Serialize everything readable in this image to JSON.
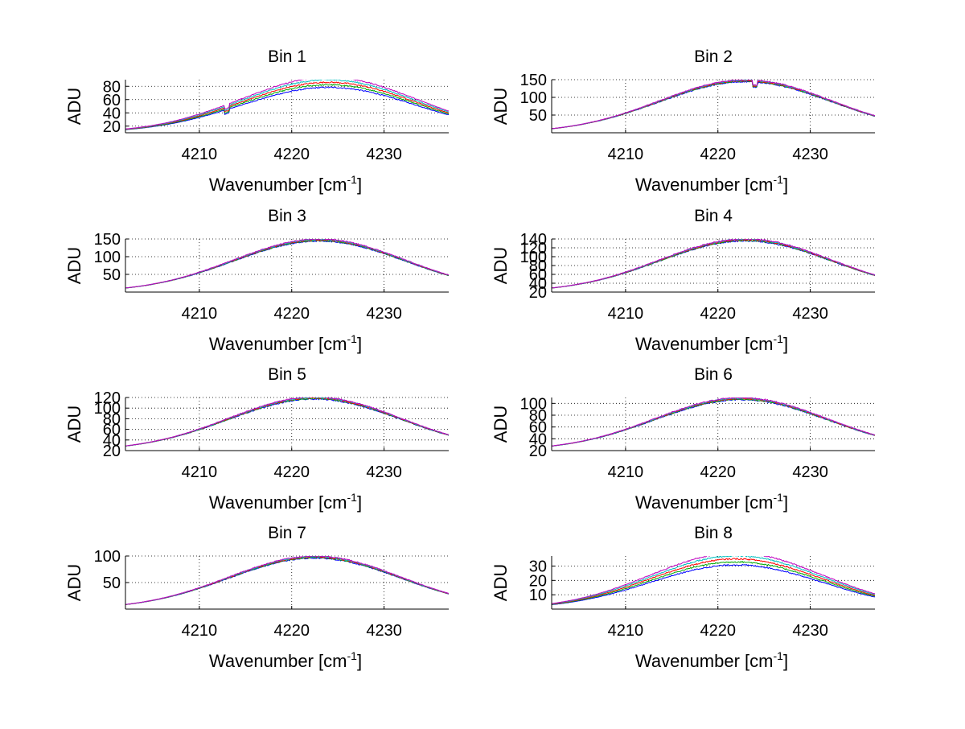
{
  "figure": {
    "background": "#ffffff",
    "grid": true,
    "line_colors": [
      "#0000ff",
      "#00aa00",
      "#ff0000",
      "#00bfbf",
      "#bf00bf",
      "#bfbf00"
    ]
  },
  "chart_data": [
    {
      "type": "line",
      "title": "Bin 1",
      "xlabel": "Wavenumber [cm",
      "xlabel_sup": "-1",
      "xlabel_close": "]",
      "ylabel": "ADU",
      "xlim": [
        4202,
        4237
      ],
      "xticks": [
        4210,
        4220,
        4230
      ],
      "ylim": [
        10,
        90
      ],
      "yticks": [
        20,
        40,
        60,
        80
      ],
      "peak": 86,
      "center": 4224,
      "width": 9.5,
      "base": 10,
      "noise": 1.2,
      "spread": 0.05,
      "dip": [
        4213,
        6
      ]
    },
    {
      "type": "line",
      "title": "Bin 2",
      "xlabel": "Wavenumber [cm",
      "xlabel_sup": "-1",
      "xlabel_close": "]",
      "ylabel": "ADU",
      "xlim": [
        4202,
        4237
      ],
      "xticks": [
        4210,
        4220,
        4230
      ],
      "ylim": [
        0,
        150
      ],
      "yticks": [
        50,
        100,
        150
      ],
      "peak": 147,
      "center": 4223,
      "width": 9.3,
      "base": 0,
      "noise": 2,
      "spread": 0.01,
      "dip": [
        4224,
        14
      ]
    },
    {
      "type": "line",
      "title": "Bin 3",
      "xlabel": "Wavenumber [cm",
      "xlabel_sup": "-1",
      "xlabel_close": "]",
      "ylabel": "ADU",
      "xlim": [
        4202,
        4237
      ],
      "xticks": [
        4210,
        4220,
        4230
      ],
      "ylim": [
        0,
        150
      ],
      "yticks": [
        50,
        100,
        150
      ],
      "peak": 147,
      "center": 4223,
      "width": 9.3,
      "base": 0,
      "noise": 2,
      "spread": 0.01
    },
    {
      "type": "line",
      "title": "Bin 4",
      "xlabel": "Wavenumber [cm",
      "xlabel_sup": "-1",
      "xlabel_close": "]",
      "ylabel": "ADU",
      "xlim": [
        4202,
        4237
      ],
      "xticks": [
        4210,
        4220,
        4230
      ],
      "ylim": [
        20,
        140
      ],
      "yticks": [
        20,
        40,
        60,
        80,
        100,
        120,
        140
      ],
      "ytick_labels": [
        "20",
        "40",
        "60",
        "80",
        "100",
        "120",
        "140"
      ],
      "peak": 138,
      "center": 4223,
      "width": 9.3,
      "base": 20,
      "noise": 1.8,
      "spread": 0.01
    },
    {
      "type": "line",
      "title": "Bin 5",
      "xlabel": "Wavenumber [cm",
      "xlabel_sup": "-1",
      "xlabel_close": "]",
      "ylabel": "ADU",
      "xlim": [
        4202,
        4237
      ],
      "xticks": [
        4210,
        4220,
        4230
      ],
      "ylim": [
        20,
        120
      ],
      "yticks": [
        20,
        40,
        60,
        80,
        100,
        120
      ],
      "ytick_labels": [
        "20",
        "40",
        "60",
        "80",
        "100",
        "120"
      ],
      "peak": 119,
      "center": 4222.5,
      "width": 9.3,
      "base": 20,
      "noise": 1.5,
      "spread": 0.01
    },
    {
      "type": "line",
      "title": "Bin 6",
      "xlabel": "Wavenumber [cm",
      "xlabel_sup": "-1",
      "xlabel_close": "]",
      "ylabel": "ADU",
      "xlim": [
        4202,
        4237
      ],
      "xticks": [
        4210,
        4220,
        4230
      ],
      "ylim": [
        20,
        110
      ],
      "yticks": [
        20,
        40,
        60,
        80,
        100
      ],
      "ytick_labels": [
        "20",
        "40",
        "60",
        "80",
        "100"
      ],
      "peak": 108,
      "center": 4222.5,
      "width": 9.3,
      "base": 20,
      "noise": 1.4,
      "spread": 0.01
    },
    {
      "type": "line",
      "title": "Bin 7",
      "xlabel": "Wavenumber [cm",
      "xlabel_sup": "-1",
      "xlabel_close": "]",
      "ylabel": "ADU",
      "xlim": [
        4202,
        4237
      ],
      "xticks": [
        4210,
        4220,
        4230
      ],
      "ylim": [
        0,
        100
      ],
      "yticks": [
        50,
        100
      ],
      "peak": 98,
      "center": 4222.5,
      "width": 9.3,
      "base": 0,
      "noise": 1.3,
      "spread": 0.01
    },
    {
      "type": "line",
      "title": "Bin 8",
      "xlabel": "Wavenumber [cm",
      "xlabel_sup": "-1",
      "xlabel_close": "]",
      "ylabel": "ADU",
      "xlim": [
        4202,
        4237
      ],
      "xticks": [
        4210,
        4220,
        4230
      ],
      "ylim": [
        0,
        37
      ],
      "yticks": [
        10,
        20,
        30
      ],
      "peak": 35,
      "center": 4222,
      "width": 9.3,
      "base": 0,
      "noise": 0.6,
      "spread": 0.06
    }
  ]
}
